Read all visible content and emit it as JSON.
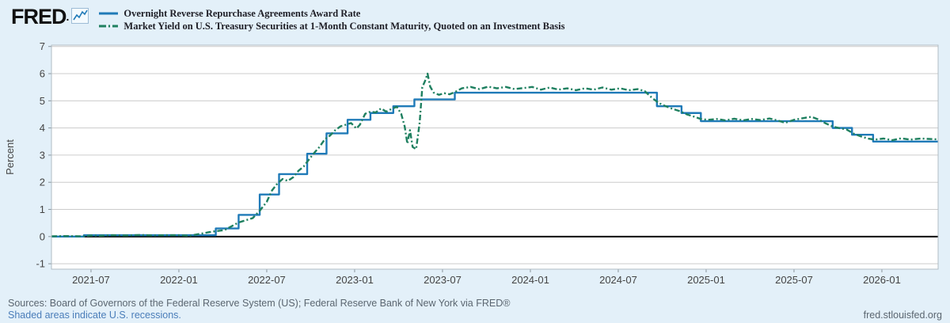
{
  "header": {
    "logo_text": "FRED",
    "logo_reg": ".",
    "legend": [
      {
        "label": "Overnight Reverse Repurchase Agreements Award Rate"
      },
      {
        "label": "Market Yield on U.S. Treasury Securities at 1-Month Constant Maturity, Quoted on an Investment Basis"
      }
    ]
  },
  "footer": {
    "sources": "Sources: Board of Governors of the Federal Reserve System (US); Federal Reserve Bank of New York via FRED®",
    "note": "Shaded areas indicate U.S. recessions.",
    "site": "fred.stlouisfed.org"
  },
  "colors": {
    "background": "#e3f0f9",
    "plot_background": "#ffffff",
    "grid": "#cccccc",
    "plot_border": "#b0bcc4",
    "zero_line": "#000000",
    "axis_text": "#444444",
    "series1": "#1f7ab8",
    "series2": "#1f8060",
    "link": "#4a7db9"
  },
  "chart_data": {
    "type": "line",
    "title": "",
    "xlabel": "",
    "ylabel": "Percent",
    "ylim": [
      -1,
      7
    ],
    "yticks": [
      -1,
      0,
      1,
      2,
      3,
      4,
      5,
      6,
      7
    ],
    "xlim": [
      2021.275,
      2026.32
    ],
    "xticks": [
      {
        "x": 2021.5,
        "label": "2021-07"
      },
      {
        "x": 2022.0,
        "label": "2022-01"
      },
      {
        "x": 2022.5,
        "label": "2022-07"
      },
      {
        "x": 2023.0,
        "label": "2023-01"
      },
      {
        "x": 2023.5,
        "label": "2023-07"
      },
      {
        "x": 2024.0,
        "label": "2024-01"
      },
      {
        "x": 2024.5,
        "label": "2024-07"
      },
      {
        "x": 2025.0,
        "label": "2025-01"
      },
      {
        "x": 2025.5,
        "label": "2025-07"
      },
      {
        "x": 2026.0,
        "label": "2026-01"
      }
    ],
    "grid": true,
    "zero_line": true,
    "legend_position": "top-left",
    "series": [
      {
        "name": "Overnight Reverse Repurchase Agreements Award Rate",
        "color": "#1f7ab8",
        "style": "solid",
        "step": true,
        "legend_dash": "",
        "points": [
          [
            2021.275,
            0.0
          ],
          [
            2021.46,
            0.05
          ],
          [
            2022.21,
            0.3
          ],
          [
            2022.34,
            0.8
          ],
          [
            2022.46,
            1.55
          ],
          [
            2022.57,
            2.3
          ],
          [
            2022.73,
            3.05
          ],
          [
            2022.84,
            3.8
          ],
          [
            2022.96,
            4.3
          ],
          [
            2023.09,
            4.55
          ],
          [
            2023.22,
            4.8
          ],
          [
            2023.34,
            5.05
          ],
          [
            2023.57,
            5.3
          ],
          [
            2024.72,
            4.8
          ],
          [
            2024.86,
            4.55
          ],
          [
            2024.97,
            4.25
          ],
          [
            2025.72,
            4.0
          ],
          [
            2025.83,
            3.75
          ],
          [
            2025.95,
            3.5
          ],
          [
            2026.32,
            3.5
          ]
        ]
      },
      {
        "name": "Market Yield on U.S. Treasury Securities at 1-Month Constant Maturity, Quoted on an Investment Basis",
        "color": "#1f8060",
        "style": "dash-dot",
        "step": false,
        "legend_dash": "9 3 2 3",
        "points": [
          [
            2021.275,
            0.01
          ],
          [
            2021.35,
            0.02
          ],
          [
            2021.45,
            0.01
          ],
          [
            2021.5,
            0.04
          ],
          [
            2021.55,
            0.03
          ],
          [
            2021.62,
            0.05
          ],
          [
            2021.7,
            0.04
          ],
          [
            2021.78,
            0.06
          ],
          [
            2021.85,
            0.04
          ],
          [
            2021.92,
            0.05
          ],
          [
            2022.0,
            0.05
          ],
          [
            2022.06,
            0.03
          ],
          [
            2022.12,
            0.1
          ],
          [
            2022.17,
            0.16
          ],
          [
            2022.21,
            0.2
          ],
          [
            2022.26,
            0.24
          ],
          [
            2022.3,
            0.38
          ],
          [
            2022.34,
            0.52
          ],
          [
            2022.38,
            0.6
          ],
          [
            2022.42,
            0.68
          ],
          [
            2022.46,
            0.95
          ],
          [
            2022.5,
            1.28
          ],
          [
            2022.53,
            1.7
          ],
          [
            2022.56,
            1.95
          ],
          [
            2022.59,
            2.12
          ],
          [
            2022.62,
            2.05
          ],
          [
            2022.65,
            2.18
          ],
          [
            2022.68,
            2.42
          ],
          [
            2022.71,
            2.58
          ],
          [
            2022.745,
            2.88
          ],
          [
            2022.775,
            3.12
          ],
          [
            2022.8,
            3.3
          ],
          [
            2022.83,
            3.58
          ],
          [
            2022.86,
            3.72
          ],
          [
            2022.89,
            3.92
          ],
          [
            2022.92,
            4.06
          ],
          [
            2022.95,
            4.12
          ],
          [
            2022.98,
            4.18
          ],
          [
            2023.01,
            3.98
          ],
          [
            2023.03,
            4.12
          ],
          [
            2023.06,
            4.52
          ],
          [
            2023.09,
            4.6
          ],
          [
            2023.12,
            4.57
          ],
          [
            2023.15,
            4.72
          ],
          [
            2023.18,
            4.6
          ],
          [
            2023.21,
            4.7
          ],
          [
            2023.24,
            4.78
          ],
          [
            2023.265,
            4.52
          ],
          [
            2023.285,
            4.05
          ],
          [
            2023.3,
            3.42
          ],
          [
            2023.315,
            3.92
          ],
          [
            2023.33,
            3.3
          ],
          [
            2023.35,
            3.22
          ],
          [
            2023.37,
            4.2
          ],
          [
            2023.385,
            5.5
          ],
          [
            2023.4,
            5.72
          ],
          [
            2023.415,
            6.0
          ],
          [
            2023.43,
            5.52
          ],
          [
            2023.45,
            5.3
          ],
          [
            2023.48,
            5.22
          ],
          [
            2023.51,
            5.28
          ],
          [
            2023.54,
            5.24
          ],
          [
            2023.57,
            5.32
          ],
          [
            2023.61,
            5.46
          ],
          [
            2023.66,
            5.51
          ],
          [
            2023.71,
            5.43
          ],
          [
            2023.76,
            5.52
          ],
          [
            2023.81,
            5.46
          ],
          [
            2023.86,
            5.51
          ],
          [
            2023.91,
            5.43
          ],
          [
            2023.96,
            5.47
          ],
          [
            2024.01,
            5.51
          ],
          [
            2024.06,
            5.41
          ],
          [
            2024.11,
            5.49
          ],
          [
            2024.16,
            5.41
          ],
          [
            2024.21,
            5.46
          ],
          [
            2024.26,
            5.39
          ],
          [
            2024.31,
            5.46
          ],
          [
            2024.36,
            5.41
          ],
          [
            2024.41,
            5.49
          ],
          [
            2024.46,
            5.41
          ],
          [
            2024.51,
            5.46
          ],
          [
            2024.56,
            5.39
          ],
          [
            2024.61,
            5.43
          ],
          [
            2024.65,
            5.36
          ],
          [
            2024.69,
            5.12
          ],
          [
            2024.73,
            4.92
          ],
          [
            2024.77,
            4.8
          ],
          [
            2024.81,
            4.7
          ],
          [
            2024.85,
            4.62
          ],
          [
            2024.89,
            4.5
          ],
          [
            2024.93,
            4.42
          ],
          [
            2024.97,
            4.33
          ],
          [
            2025.01,
            4.3
          ],
          [
            2025.06,
            4.33
          ],
          [
            2025.11,
            4.28
          ],
          [
            2025.16,
            4.34
          ],
          [
            2025.21,
            4.28
          ],
          [
            2025.26,
            4.33
          ],
          [
            2025.31,
            4.29
          ],
          [
            2025.36,
            4.35
          ],
          [
            2025.41,
            4.27
          ],
          [
            2025.45,
            4.19
          ],
          [
            2025.5,
            4.3
          ],
          [
            2025.55,
            4.36
          ],
          [
            2025.6,
            4.41
          ],
          [
            2025.64,
            4.31
          ],
          [
            2025.68,
            4.17
          ],
          [
            2025.72,
            4.05
          ],
          [
            2025.76,
            3.99
          ],
          [
            2025.8,
            3.94
          ],
          [
            2025.84,
            3.79
          ],
          [
            2025.88,
            3.69
          ],
          [
            2025.92,
            3.61
          ],
          [
            2025.96,
            3.57
          ],
          [
            2026.01,
            3.61
          ],
          [
            2026.06,
            3.55
          ],
          [
            2026.11,
            3.62
          ],
          [
            2026.16,
            3.57
          ],
          [
            2026.22,
            3.61
          ],
          [
            2026.32,
            3.58
          ]
        ]
      }
    ]
  }
}
